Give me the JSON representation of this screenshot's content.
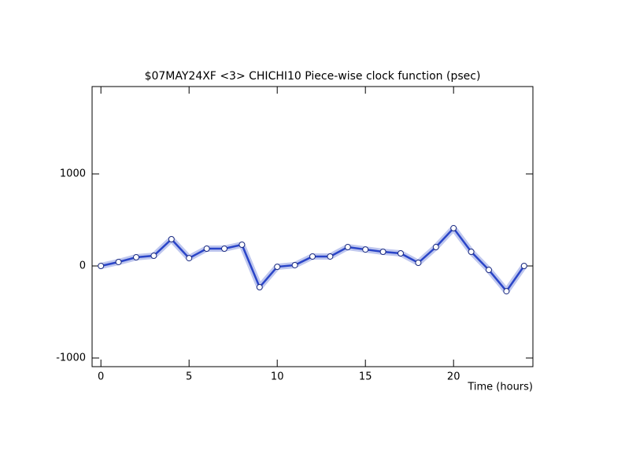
{
  "chart_data": {
    "type": "line",
    "title": "$07MAY24XF <3>  CHICHI10  Piece-wise clock function (psec)",
    "x_label": "Time (hours)",
    "x": [
      0,
      1,
      2,
      3,
      4,
      5,
      6,
      7,
      8,
      9,
      10,
      11,
      12,
      13,
      14,
      15,
      16,
      17,
      18,
      19,
      20,
      21,
      22,
      23,
      24
    ],
    "series": [
      {
        "color": "#2a45c8",
        "values": [
          0,
          43,
          94,
          111,
          291,
          85,
          188,
          188,
          231,
          -231,
          -9,
          9,
          103,
          103,
          205,
          179,
          154,
          137,
          34,
          205,
          410,
          154,
          -43,
          -274,
          0
        ]
      }
    ],
    "xlim": [
      -0.5,
      24.5
    ],
    "xticks": [
      0,
      5,
      10,
      15,
      20
    ],
    "ylim": [
      -1094,
      1949
    ],
    "yticks": [
      -1000,
      0,
      1000
    ]
  }
}
